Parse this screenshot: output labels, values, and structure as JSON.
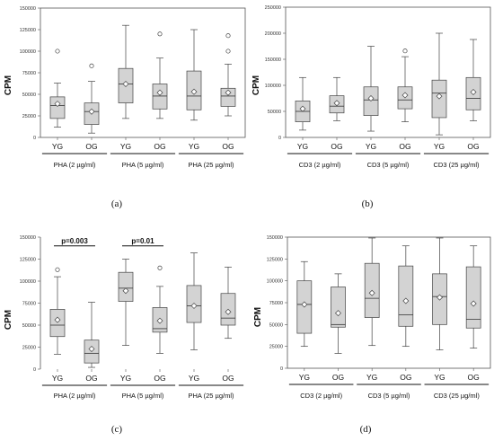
{
  "chart_data": [
    {
      "panel": "(a)",
      "type": "box",
      "ylabel": "CPM",
      "ylim": [
        0,
        150000
      ],
      "yticks": [
        0,
        25000,
        50000,
        75000,
        100000,
        125000,
        150000
      ],
      "groups": [
        "PHA (2 µg/ml)",
        "PHA (5 µg/ml)",
        "PHA (25 µg/ml)"
      ],
      "categories": [
        "YG",
        "OG",
        "YG",
        "OG",
        "YG",
        "OG"
      ],
      "boxes": [
        {
          "min": 12000,
          "q1": 22000,
          "median": 37000,
          "q3": 47000,
          "max": 63000,
          "mean": 39000,
          "outliers": [
            100000
          ]
        },
        {
          "min": 5000,
          "q1": 15000,
          "median": 30000,
          "q3": 40000,
          "max": 65000,
          "mean": 30000,
          "outliers": [
            83000
          ]
        },
        {
          "min": 22000,
          "q1": 40000,
          "median": 62000,
          "q3": 80000,
          "max": 130000,
          "mean": 62000,
          "outliers": []
        },
        {
          "min": 22000,
          "q1": 33000,
          "median": 48000,
          "q3": 62000,
          "max": 92000,
          "mean": 52000,
          "outliers": [
            120000
          ]
        },
        {
          "min": 20000,
          "q1": 32000,
          "median": 48000,
          "q3": 77000,
          "max": 125000,
          "mean": 53000,
          "outliers": []
        },
        {
          "min": 25000,
          "q1": 36000,
          "median": 48000,
          "q3": 57000,
          "max": 85000,
          "mean": 52000,
          "outliers": [
            100000,
            118000
          ]
        }
      ],
      "annotations": []
    },
    {
      "panel": "(b)",
      "type": "box",
      "ylabel": "CPM",
      "ylim": [
        0,
        250000
      ],
      "yticks": [
        0,
        50000,
        100000,
        150000,
        200000,
        250000
      ],
      "groups": [
        "CD3 (2 µg/ml)",
        "CD3 (5 µg/ml)",
        "CD3 (25 µg/ml)"
      ],
      "categories": [
        "YG",
        "OG",
        "YG",
        "OG",
        "YG",
        "OG"
      ],
      "boxes": [
        {
          "min": 14000,
          "q1": 30000,
          "median": 50000,
          "q3": 70000,
          "max": 115000,
          "mean": 55000,
          "outliers": []
        },
        {
          "min": 32000,
          "q1": 47000,
          "median": 60000,
          "q3": 80000,
          "max": 115000,
          "mean": 66000,
          "outliers": []
        },
        {
          "min": 12000,
          "q1": 42000,
          "median": 72000,
          "q3": 97000,
          "max": 175000,
          "mean": 75000,
          "outliers": []
        },
        {
          "min": 30000,
          "q1": 55000,
          "median": 72000,
          "q3": 97000,
          "max": 155000,
          "mean": 81000,
          "outliers": [
            166000
          ]
        },
        {
          "min": 5000,
          "q1": 38000,
          "median": 85000,
          "q3": 110000,
          "max": 200000,
          "mean": 79000,
          "outliers": []
        },
        {
          "min": 32000,
          "q1": 53000,
          "median": 75000,
          "q3": 115000,
          "max": 188000,
          "mean": 87000,
          "outliers": []
        }
      ],
      "annotations": []
    },
    {
      "panel": "(c)",
      "type": "box",
      "ylabel": "CPM",
      "ylim": [
        0,
        150000
      ],
      "yticks": [
        0,
        25000,
        50000,
        75000,
        100000,
        125000,
        150000
      ],
      "groups": [
        "PHA (2 µg/ml)",
        "PHA (5 µg/ml)",
        "PHA (25 µg/ml)"
      ],
      "categories": [
        "YG",
        "OG",
        "YG",
        "OG",
        "YG",
        "OG"
      ],
      "boxes": [
        {
          "min": 17000,
          "q1": 37000,
          "median": 50000,
          "q3": 68000,
          "max": 105000,
          "mean": 56000,
          "outliers": [
            113000
          ]
        },
        {
          "min": 2000,
          "q1": 7000,
          "median": 18000,
          "q3": 33000,
          "max": 76000,
          "mean": 23000,
          "outliers": []
        },
        {
          "min": 27000,
          "q1": 77000,
          "median": 92000,
          "q3": 110000,
          "max": 125000,
          "mean": 89000,
          "outliers": []
        },
        {
          "min": 18000,
          "q1": 42000,
          "median": 46000,
          "q3": 70000,
          "max": 94000,
          "mean": 55000,
          "outliers": [
            115000
          ]
        },
        {
          "min": 22000,
          "q1": 53000,
          "median": 72000,
          "q3": 95000,
          "max": 132000,
          "mean": 72000,
          "outliers": []
        },
        {
          "min": 35000,
          "q1": 50000,
          "median": 58000,
          "q3": 86000,
          "max": 116000,
          "mean": 65000,
          "outliers": []
        }
      ],
      "annotations": [
        {
          "text": "p=0.003",
          "from": 0,
          "to": 1,
          "y": 140000
        },
        {
          "text": "p=0.01",
          "from": 2,
          "to": 3,
          "y": 140000
        }
      ]
    },
    {
      "panel": "(d)",
      "type": "box",
      "ylabel": "CPM",
      "ylim": [
        0,
        150000
      ],
      "yticks": [
        0,
        25000,
        50000,
        75000,
        100000,
        125000,
        150000
      ],
      "groups": [
        "CD3 (2 µg/ml)",
        "CD3 (5 µg/ml)",
        "CD3 (25 µg/ml)"
      ],
      "categories": [
        "YG",
        "OG",
        "YG",
        "OG",
        "YG",
        "OG"
      ],
      "boxes": [
        {
          "min": 25000,
          "q1": 40000,
          "median": 73000,
          "q3": 100000,
          "max": 122000,
          "mean": 73000,
          "outliers": []
        },
        {
          "min": 17000,
          "q1": 47000,
          "median": 50000,
          "q3": 93000,
          "max": 108000,
          "mean": 63000,
          "outliers": []
        },
        {
          "min": 26000,
          "q1": 58000,
          "median": 80000,
          "q3": 120000,
          "max": 149000,
          "mean": 86000,
          "outliers": []
        },
        {
          "min": 25000,
          "q1": 48000,
          "median": 61000,
          "q3": 117000,
          "max": 140000,
          "mean": 77000,
          "outliers": []
        },
        {
          "min": 21000,
          "q1": 50000,
          "median": 82000,
          "q3": 108000,
          "max": 149000,
          "mean": 81000,
          "outliers": []
        },
        {
          "min": 23000,
          "q1": 46000,
          "median": 56000,
          "q3": 116000,
          "max": 140000,
          "mean": 74000,
          "outliers": []
        }
      ],
      "annotations": []
    }
  ]
}
